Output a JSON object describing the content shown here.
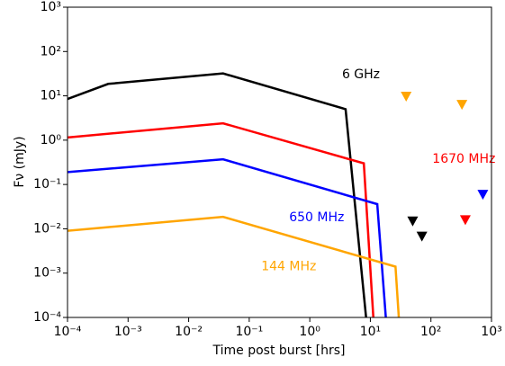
{
  "chart_data": {
    "type": "line",
    "xlabel": "Time post burst [hrs]",
    "ylabel": "Fν  (mJy)",
    "xscale": "log",
    "yscale": "log",
    "xlim": [
      0.0001,
      1000
    ],
    "ylim": [
      0.0001,
      1000
    ],
    "xticks": [
      {
        "value": 0.0001,
        "label": "10⁻⁴"
      },
      {
        "value": 0.001,
        "label": "10⁻³"
      },
      {
        "value": 0.01,
        "label": "10⁻²"
      },
      {
        "value": 0.1,
        "label": "10⁻¹"
      },
      {
        "value": 1,
        "label": "10⁰"
      },
      {
        "value": 10,
        "label": "10¹"
      },
      {
        "value": 100,
        "label": "10²"
      },
      {
        "value": 1000,
        "label": "10³"
      }
    ],
    "yticks": [
      {
        "value": 0.0001,
        "label": "10⁻⁴"
      },
      {
        "value": 0.001,
        "label": "10⁻³"
      },
      {
        "value": 0.01,
        "label": "10⁻²"
      },
      {
        "value": 0.1,
        "label": "10⁻¹"
      },
      {
        "value": 1,
        "label": "10⁰"
      },
      {
        "value": 10,
        "label": "10¹"
      },
      {
        "value": 100,
        "label": "10²"
      },
      {
        "value": 1000,
        "label": "10³"
      }
    ],
    "series": [
      {
        "color": "#000000",
        "x": [
          0.0001,
          0.00047,
          0.037,
          3.9,
          8.5
        ],
        "values": [
          8.5,
          18.6,
          32,
          5,
          0.0001
        ]
      },
      {
        "color": "#ff0000",
        "x": [
          0.0001,
          0.037,
          7.8,
          11.2
        ],
        "values": [
          1.15,
          2.4,
          0.3,
          0.0001
        ]
      },
      {
        "color": "#0000ff",
        "x": [
          0.0001,
          0.037,
          13,
          18
        ],
        "values": [
          0.19,
          0.37,
          0.036,
          0.0001
        ]
      },
      {
        "color": "#ffa500",
        "x": [
          0.0001,
          0.037,
          26,
          29.5
        ],
        "values": [
          0.009,
          0.0186,
          0.0014,
          0.0001
        ]
      }
    ],
    "upper_limits": [
      {
        "color": "#ffa500",
        "x": [
          39,
          325
        ],
        "values": [
          9.8,
          6.4
        ]
      },
      {
        "color": "#ff0000",
        "x": [
          370
        ],
        "values": [
          0.016
        ]
      },
      {
        "color": "#0000ff",
        "x": [
          720
        ],
        "values": [
          0.06
        ]
      },
      {
        "color": "#000000",
        "x": [
          50,
          71
        ],
        "values": [
          0.015,
          0.0068
        ]
      }
    ],
    "annotations": [
      {
        "text": "6 GHz",
        "color": "#000000",
        "x": 7,
        "y": 30
      },
      {
        "text": "1670 MHz",
        "color": "#ff0000",
        "x": 350,
        "y": 0.37
      },
      {
        "text": "650 MHz",
        "color": "#0000ff",
        "x": 1.3,
        "y": 0.018
      },
      {
        "text": "144 MHz",
        "color": "#ffa500",
        "x": 0.45,
        "y": 0.0014
      }
    ]
  }
}
